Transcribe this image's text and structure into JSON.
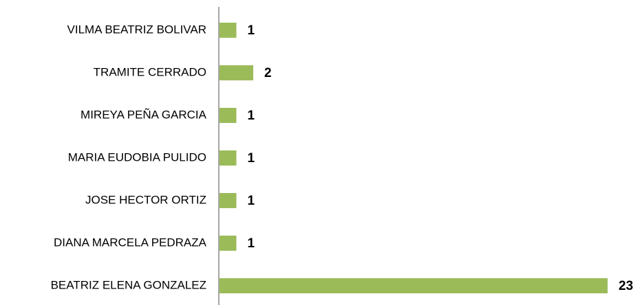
{
  "chart_data": {
    "type": "barh",
    "categories": [
      "VILMA BEATRIZ BOLIVAR",
      "TRAMITE CERRADO",
      "MIREYA PEÑA GARCIA",
      "MARIA EUDOBIA PULIDO",
      "JOSE HECTOR ORTIZ",
      "DIANA MARCELA PEDRAZA",
      "BEATRIZ ELENA GONZALEZ"
    ],
    "values": [
      1,
      2,
      1,
      1,
      1,
      1,
      23
    ],
    "color": "#9bbb59"
  }
}
